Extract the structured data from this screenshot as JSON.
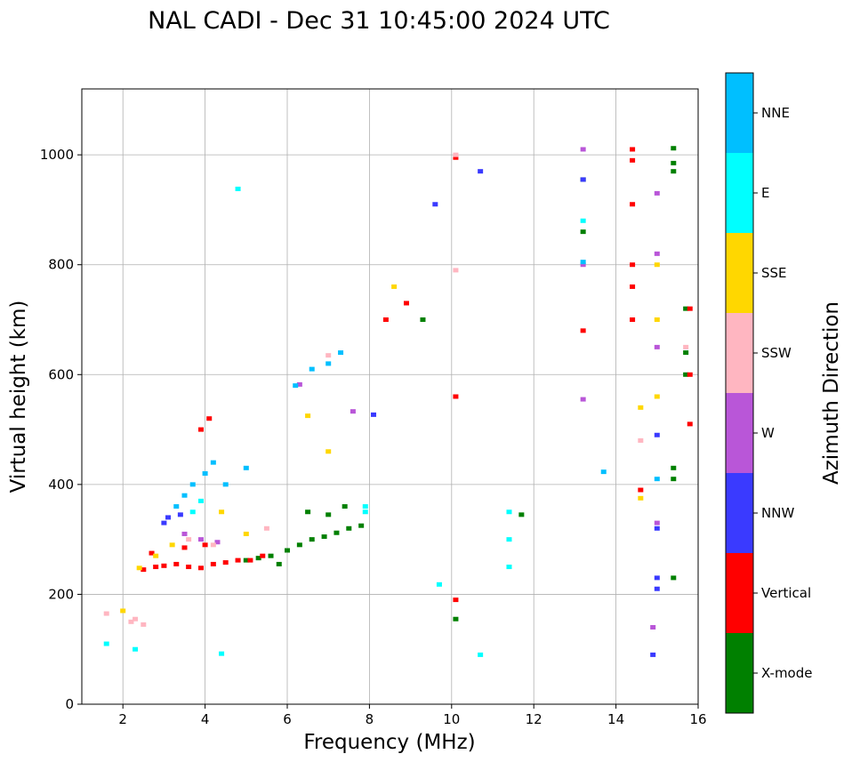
{
  "chart_data": {
    "type": "scatter",
    "title": "NAL CADI - Dec 31 10:45:00 2024 UTC",
    "xlabel": "Frequency (MHz)",
    "ylabel": "Virtual height (km)",
    "xlim": [
      1,
      16
    ],
    "ylim": [
      0,
      1120
    ],
    "xticks": [
      "2",
      "4",
      "6",
      "8",
      "10",
      "12",
      "14",
      "16"
    ],
    "yticks": [
      "0",
      "200",
      "400",
      "600",
      "800",
      "1000"
    ],
    "grid": true,
    "colorbar": {
      "title": "Azimuth Direction",
      "labels": [
        "X-mode",
        "Vertical",
        "NNW",
        "W",
        "SSW",
        "SSE",
        "E",
        "NNE"
      ],
      "colors": [
        "#008000",
        "#ff0000",
        "#3a3aff",
        "#b956d8",
        "#ffb6c1",
        "#ffd700",
        "#00ffff",
        "#00bfff"
      ]
    },
    "categories": [
      "X-mode",
      "Vertical",
      "NNW",
      "W",
      "SSW",
      "SSE",
      "E",
      "NNE"
    ],
    "series": [
      {
        "name": "X-mode",
        "x": [
          5.0,
          5.3,
          5.6,
          6.0,
          6.3,
          6.6,
          6.9,
          7.2,
          7.5,
          7.8,
          6.5,
          7.0,
          7.4,
          5.8,
          9.3,
          10.1,
          11.7,
          13.2,
          13.2,
          15.4,
          15.4,
          15.4,
          15.7,
          15.7,
          15.7,
          15.4,
          15.4,
          15.4
        ],
        "y": [
          262,
          266,
          270,
          280,
          290,
          300,
          305,
          312,
          320,
          325,
          350,
          345,
          360,
          255,
          700,
          155,
          345,
          860,
          955,
          1012,
          985,
          970,
          720,
          640,
          600,
          430,
          410,
          230
        ]
      },
      {
        "name": "Vertical",
        "x": [
          2.5,
          2.8,
          3.0,
          3.3,
          3.6,
          3.9,
          4.2,
          4.5,
          4.8,
          5.1,
          5.4,
          3.5,
          4.0,
          2.7,
          10.1,
          10.1,
          10.1,
          13.2,
          14.4,
          14.4,
          14.4,
          14.4,
          14.4,
          14.4,
          14.6,
          15.8,
          15.8,
          15.8,
          8.4,
          8.9,
          4.1,
          3.9
        ],
        "y": [
          245,
          250,
          252,
          255,
          250,
          248,
          255,
          258,
          262,
          262,
          270,
          285,
          290,
          275,
          995,
          560,
          190,
          680,
          1010,
          990,
          910,
          800,
          760,
          700,
          390,
          720,
          600,
          510,
          700,
          730,
          520,
          500
        ]
      },
      {
        "name": "NNW",
        "x": [
          3.1,
          3.4,
          3.0,
          10.7,
          9.6,
          8.1,
          13.2,
          15.0,
          15.0,
          15.0,
          14.9,
          15.0
        ],
        "y": [
          340,
          345,
          330,
          970,
          910,
          527,
          955,
          490,
          320,
          230,
          90,
          210
        ]
      },
      {
        "name": "W",
        "x": [
          3.5,
          3.9,
          4.3,
          6.3,
          7.6,
          13.2,
          13.2,
          13.2,
          15.0,
          15.0,
          15.0,
          14.9,
          15.0
        ],
        "y": [
          310,
          300,
          295,
          582,
          533,
          1010,
          800,
          555,
          930,
          820,
          650,
          140,
          330
        ]
      },
      {
        "name": "SSW",
        "x": [
          1.6,
          2.3,
          2.5,
          3.6,
          4.2,
          7.0,
          10.1,
          10.1,
          14.6,
          15.7,
          5.5,
          2.2
        ],
        "y": [
          165,
          155,
          145,
          300,
          290,
          635,
          1000,
          790,
          480,
          650,
          320,
          150
        ]
      },
      {
        "name": "SSE",
        "x": [
          2.0,
          2.4,
          2.8,
          3.2,
          4.4,
          5.0,
          6.5,
          7.0,
          8.6,
          15.0,
          15.0,
          15.0,
          14.6,
          14.6,
          11.4
        ],
        "y": [
          170,
          248,
          270,
          290,
          350,
          310,
          525,
          460,
          760,
          800,
          700,
          560,
          540,
          375,
          250
        ]
      },
      {
        "name": "E",
        "x": [
          1.6,
          2.3,
          4.4,
          4.8,
          7.9,
          7.9,
          10.7,
          9.7,
          11.4,
          11.4,
          11.4,
          3.7,
          3.9,
          13.2
        ],
        "y": [
          110,
          100,
          92,
          938,
          360,
          350,
          90,
          218,
          350,
          300,
          250,
          350,
          370,
          880
        ]
      },
      {
        "name": "NNE",
        "x": [
          3.3,
          3.5,
          3.7,
          4.0,
          4.2,
          4.5,
          5.0,
          6.2,
          6.6,
          7.0,
          7.3,
          13.7,
          15.0,
          13.2
        ],
        "y": [
          360,
          380,
          400,
          420,
          440,
          400,
          430,
          580,
          610,
          620,
          640,
          423,
          410,
          805
        ]
      }
    ]
  }
}
